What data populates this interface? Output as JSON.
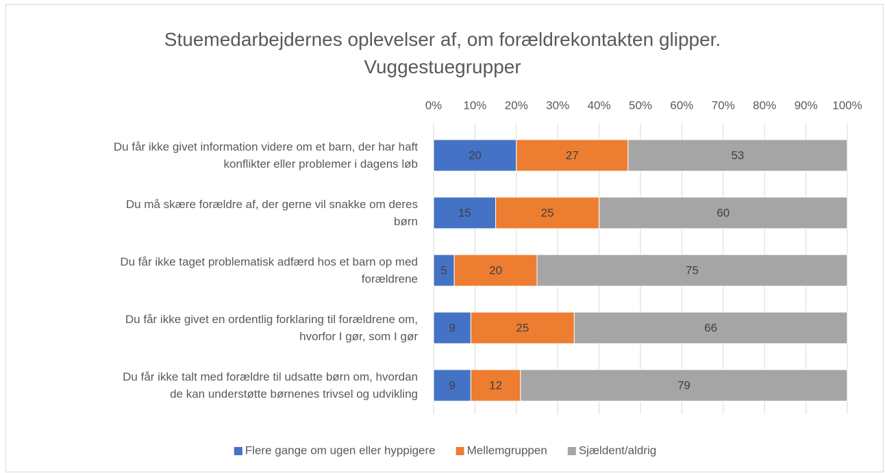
{
  "chart_data": {
    "type": "stacked-bar-horizontal",
    "title": "Stuemedarbejdernes oplevelser af, om forældrekontakten glipper. Vuggestuegrupper",
    "categories": [
      "Du får ikke givet information videre om et barn, der har haft konflikter eller problemer i dagens løb",
      "Du må skære forældre af, der gerne vil snakke om deres børn",
      "Du får ikke taget problematisk adfærd hos et barn op med forældrene",
      "Du får ikke givet en ordentlig forklaring til forældrene om, hvorfor I gør, som I gør",
      "Du får ikke talt med forældre til udsatte børn om, hvordan de kan understøtte børnenes trivsel og udvikling"
    ],
    "series": [
      {
        "name": "Flere gange om ugen eller hyppigere",
        "color": "#4472c4",
        "values": [
          20,
          15,
          5,
          9,
          9
        ]
      },
      {
        "name": "Mellemgruppen",
        "color": "#ed7d31",
        "values": [
          27,
          25,
          20,
          25,
          12
        ]
      },
      {
        "name": "Sjældent/aldrig",
        "color": "#a5a5a5",
        "values": [
          53,
          60,
          75,
          66,
          79
        ]
      }
    ],
    "xlim": [
      0,
      100
    ],
    "xticks": [
      {
        "value": 0,
        "label": "0%"
      },
      {
        "value": 10,
        "label": "10%"
      },
      {
        "value": 20,
        "label": "20%"
      },
      {
        "value": 30,
        "label": "30%"
      },
      {
        "value": 40,
        "label": "40%"
      },
      {
        "value": 50,
        "label": "50%"
      },
      {
        "value": 60,
        "label": "60%"
      },
      {
        "value": 70,
        "label": "70%"
      },
      {
        "value": 80,
        "label": "80%"
      },
      {
        "value": 90,
        "label": "90%"
      },
      {
        "value": 100,
        "label": "100%"
      }
    ],
    "grid": true,
    "legend": "bottom"
  }
}
